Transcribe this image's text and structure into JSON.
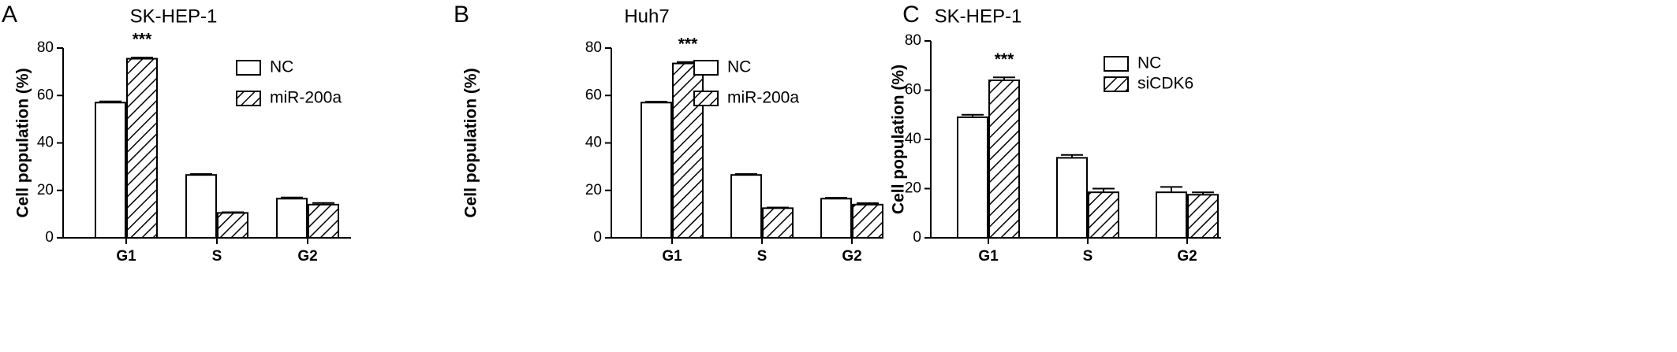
{
  "chart_data": [
    {
      "type": "bar",
      "panel_label": "A",
      "title": "SK-HEP-1",
      "y_label": "Cell population (%)",
      "annotation": "***",
      "categories": [
        "G1",
        "S",
        "G2"
      ],
      "series": [
        {
          "name": "NC",
          "color": "#ffffff",
          "values": [
            57,
            26.5,
            16.5
          ],
          "errors": [
            0.5,
            0.4,
            0.5
          ]
        },
        {
          "name": "miR-200a",
          "color": "#ffffff",
          "hatch": true,
          "values": [
            75.5,
            10.5,
            14
          ],
          "errors": [
            0.5,
            0.3,
            0.7
          ]
        }
      ],
      "ylim": [
        0,
        80
      ],
      "yticks": [
        0,
        20,
        40,
        60,
        80
      ]
    },
    {
      "type": "bar",
      "panel_label": "B",
      "title": "Huh7",
      "y_label": "Cell population (%)",
      "annotation": "***",
      "categories": [
        "G1",
        "S",
        "G2"
      ],
      "series": [
        {
          "name": "NC",
          "color": "#ffffff",
          "values": [
            57,
            26.5,
            16.5
          ],
          "errors": [
            0.4,
            0.4,
            0.4
          ]
        },
        {
          "name": "miR-200a",
          "color": "#ffffff",
          "hatch": true,
          "values": [
            73.5,
            12.5,
            14
          ],
          "errors": [
            0.6,
            0.3,
            0.6
          ]
        }
      ],
      "ylim": [
        0,
        80
      ],
      "yticks": [
        0,
        20,
        40,
        60,
        80
      ]
    },
    {
      "type": "bar",
      "panel_label": "C",
      "title": "SK-HEP-1",
      "y_label": "Cell population (%)",
      "annotation": "***",
      "categories": [
        "G1",
        "S",
        "G2"
      ],
      "series": [
        {
          "name": "NC",
          "color": "#ffffff",
          "values": [
            49,
            32.5,
            18.5
          ],
          "errors": [
            1,
            1.2,
            2.2
          ]
        },
        {
          "name": "siCDK6",
          "color": "#ffffff",
          "hatch": true,
          "values": [
            64,
            18.5,
            17.5
          ],
          "errors": [
            1.2,
            1.5,
            1
          ]
        }
      ],
      "ylim": [
        0,
        80
      ],
      "yticks": [
        0,
        20,
        40,
        60,
        80
      ]
    }
  ]
}
